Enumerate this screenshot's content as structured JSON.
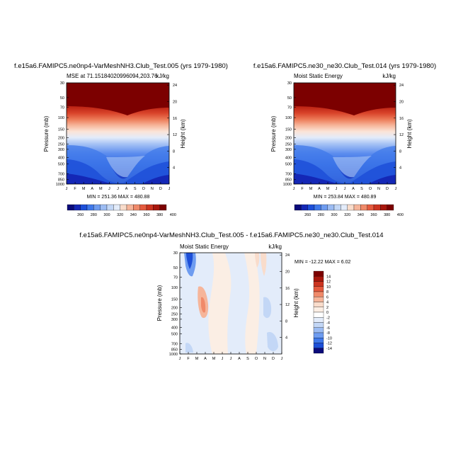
{
  "chart_data": [
    {
      "type": "contour",
      "title": "f.e15a6.FAMIPC5.ne0np4-VarMeshNH3.Club_Test.005 (yrs 1979-1980)",
      "left_string": "MSE at 71.15184020996094,203.76",
      "right_string": "kJ/kg",
      "xlabel": "",
      "ylabel": "Pressure (mb)",
      "ylabel_right": "Height (km)",
      "x": [
        "J",
        "F",
        "M",
        "A",
        "M",
        "J",
        "J",
        "A",
        "S",
        "O",
        "N",
        "D",
        "J"
      ],
      "pressure_ticks": [
        "30",
        "50",
        "70",
        "100",
        "150",
        "200",
        "250",
        "300",
        "400",
        "500",
        "700",
        "850",
        "1000"
      ],
      "height_ticks": [
        "24",
        "20",
        "16",
        "12",
        "8",
        "4"
      ],
      "minmax_text": "MIN = 251.36  MAX = 480.88",
      "min": 251.36,
      "max": 480.88,
      "colorbar": {
        "labels": [
          "260",
          "280",
          "300",
          "320",
          "340",
          "360",
          "380",
          "400"
        ],
        "colors": [
          "#0b0b7a",
          "#1427b6",
          "#1d4fd8",
          "#3f78ea",
          "#6e9cf0",
          "#9cbcf3",
          "#c3d7f6",
          "#e3ecfa",
          "#f9dccb",
          "#f6b59a",
          "#f08a6a",
          "#e55a3e",
          "#cc3420",
          "#a8170d",
          "#7c0000"
        ]
      }
    },
    {
      "type": "contour",
      "title": "f.e15a6.FAMIPC5.ne30_ne30.Club_Test.014 (yrs 1979-1980)",
      "left_string": "Moist Static Energy",
      "right_string": "kJ/kg",
      "ylabel": "Pressure (mb)",
      "ylabel_right": "Height (km)",
      "x": [
        "J",
        "F",
        "M",
        "A",
        "M",
        "J",
        "J",
        "A",
        "S",
        "O",
        "N",
        "D",
        "J"
      ],
      "pressure_ticks": [
        "30",
        "50",
        "70",
        "100",
        "150",
        "200",
        "250",
        "300",
        "400",
        "500",
        "700",
        "850",
        "1000"
      ],
      "height_ticks": [
        "24",
        "20",
        "16",
        "12",
        "8",
        "4"
      ],
      "minmax_text": "MIN = 253.84  MAX = 480.89",
      "min": 253.84,
      "max": 480.89,
      "colorbar": {
        "labels": [
          "260",
          "280",
          "300",
          "320",
          "340",
          "360",
          "380",
          "400"
        ]
      }
    },
    {
      "type": "contour",
      "title": "f.e15a6.FAMIPC5.ne0np4-VarMeshNH3.Club_Test.005 - f.e15a6.FAMIPC5.ne30_ne30.Club_Test.014",
      "left_string": "Moist Static Energy",
      "right_string": "kJ/kg",
      "ylabel": "Pressure (mb)",
      "ylabel_right": "Height (km)",
      "x": [
        "J",
        "F",
        "M",
        "A",
        "M",
        "J",
        "J",
        "A",
        "S",
        "O",
        "N",
        "D",
        "J"
      ],
      "pressure_ticks": [
        "30",
        "50",
        "70",
        "100",
        "150",
        "200",
        "250",
        "300",
        "400",
        "500",
        "700",
        "850",
        "1000"
      ],
      "height_ticks": [
        "24",
        "20",
        "16",
        "12",
        "8",
        "4"
      ],
      "minmax_text": "MIN = -12.22  MAX =   6.02",
      "min": -12.22,
      "max": 6.02,
      "colorbar": {
        "labels": [
          "14",
          "12",
          "10",
          "8",
          "6",
          "4",
          "2",
          "0",
          "-2",
          "-4",
          "-6",
          "-8",
          "-10",
          "-12",
          "-14"
        ],
        "colors": [
          "#7c0000",
          "#a8170d",
          "#cc3420",
          "#e55a3e",
          "#f08a6a",
          "#f6b59a",
          "#f9dccb",
          "#fbeee4",
          "#ffffff",
          "#e3ecfa",
          "#c3d7f6",
          "#9cbcf3",
          "#6e9cf0",
          "#3f78ea",
          "#1d4fd8",
          "#0b0b7a"
        ]
      }
    }
  ]
}
